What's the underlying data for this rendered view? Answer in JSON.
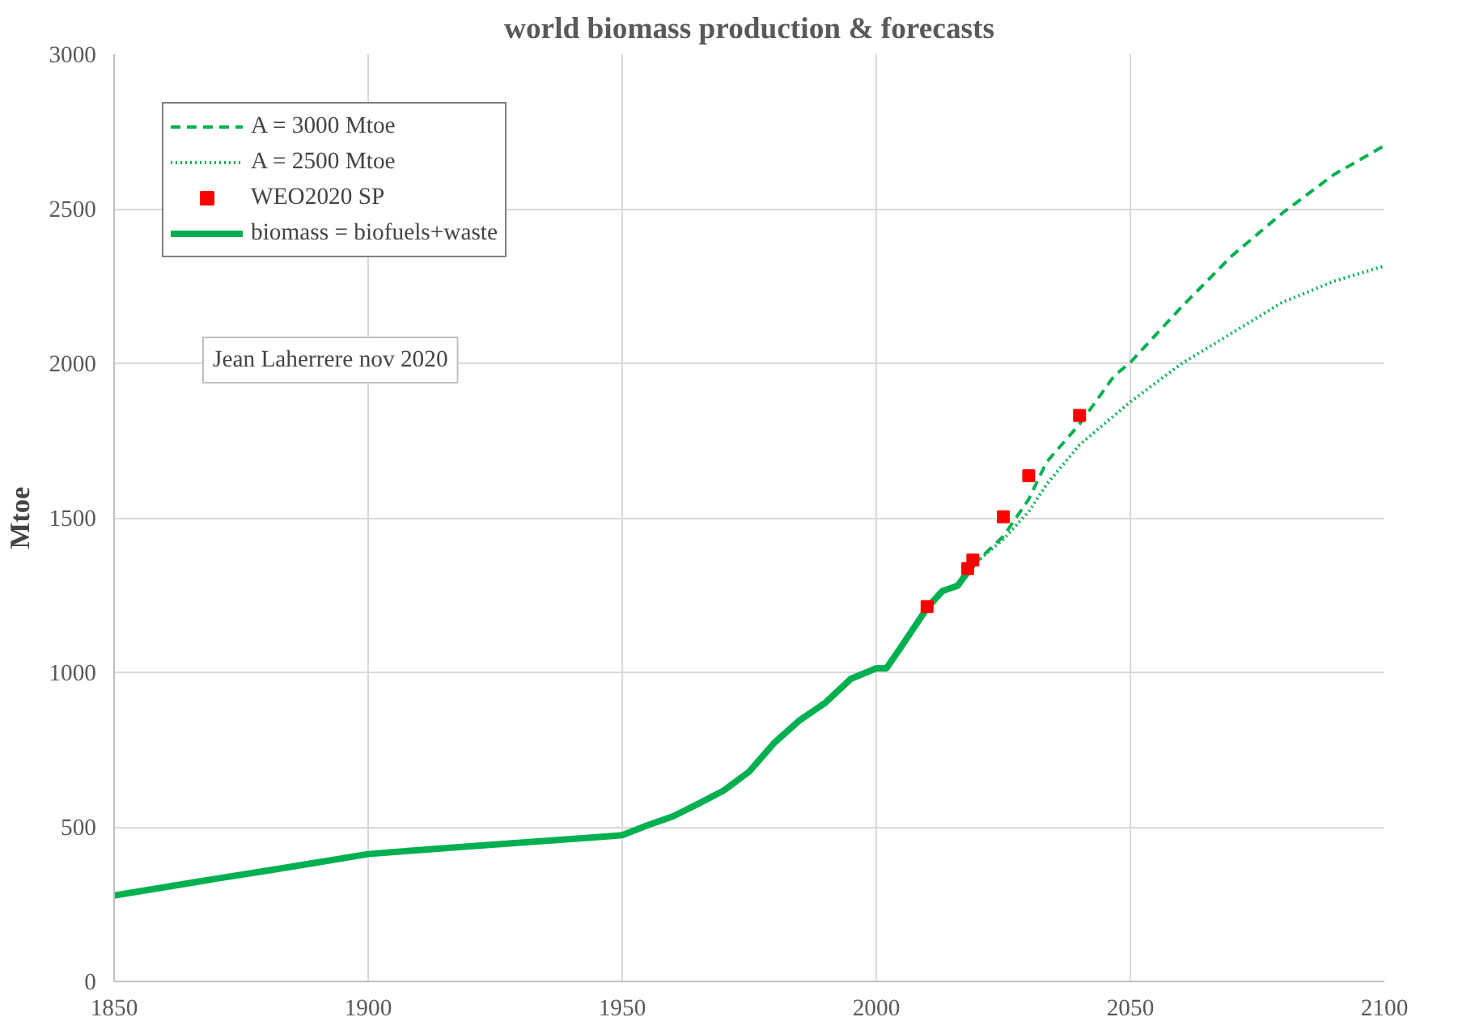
{
  "chart_data": {
    "type": "line",
    "title": "world biomass production & forecasts",
    "ylabel": "Mtoe",
    "xlim": [
      1850,
      2100
    ],
    "xticks": [
      1850,
      1900,
      1950,
      2000,
      2050,
      2100
    ],
    "ylim": [
      0,
      3000
    ],
    "yticks": [
      0,
      500,
      1000,
      1500,
      2000,
      2500,
      3000
    ],
    "grid": true,
    "legend": "top left",
    "annotations": [
      "Jean Laherrere nov 2020"
    ],
    "series": [
      {
        "name": "A = 3000 Mtoe",
        "line_style": "dashed",
        "color": "#00b050",
        "x": [
          2019,
          2025,
          2030,
          2033.5,
          2040,
          2046.8,
          2050,
          2060,
          2070,
          2080,
          2090,
          2100
        ],
        "values": [
          1347,
          1440,
          1560,
          1680,
          1803,
          1959,
          2003,
          2181,
          2348,
          2487,
          2610,
          2704
        ]
      },
      {
        "name": "A = 2500 Mtoe",
        "line_style": "dotted",
        "color": "#00b050",
        "x": [
          2019,
          2025,
          2030,
          2033.5,
          2040,
          2050,
          2060,
          2070,
          2080,
          2090,
          2100
        ],
        "values": [
          1347,
          1430,
          1520,
          1608,
          1736,
          1875,
          1998,
          2098,
          2198,
          2265,
          2315
        ]
      },
      {
        "name": "WEO2020 SP",
        "type": "scatter",
        "marker": "square",
        "color": "#ff0000",
        "x": [
          2010,
          2018,
          2019,
          2025,
          2030,
          2040
        ],
        "values": [
          1213,
          1336,
          1363,
          1503,
          1636,
          1831
        ]
      },
      {
        "name": "biomass = biofuels+waste",
        "line_style": "solid",
        "color": "#00b050",
        "x": [
          1850,
          1860,
          1870,
          1880,
          1890,
          1900,
          1910,
          1920,
          1930,
          1940,
          1950,
          1955,
          1960,
          1965,
          1970,
          1975,
          1980,
          1985,
          1990,
          1995,
          2000,
          2002,
          2005,
          2010,
          2013,
          2016,
          2019
        ],
        "values": [
          278,
          305,
          332,
          358,
          385,
          412,
          425,
          437,
          449,
          461,
          473,
          505,
          534,
          575,
          618,
          679,
          773,
          846,
          902,
          979,
          1013,
          1013,
          1085,
          1208,
          1263,
          1280,
          1347
        ]
      }
    ]
  }
}
